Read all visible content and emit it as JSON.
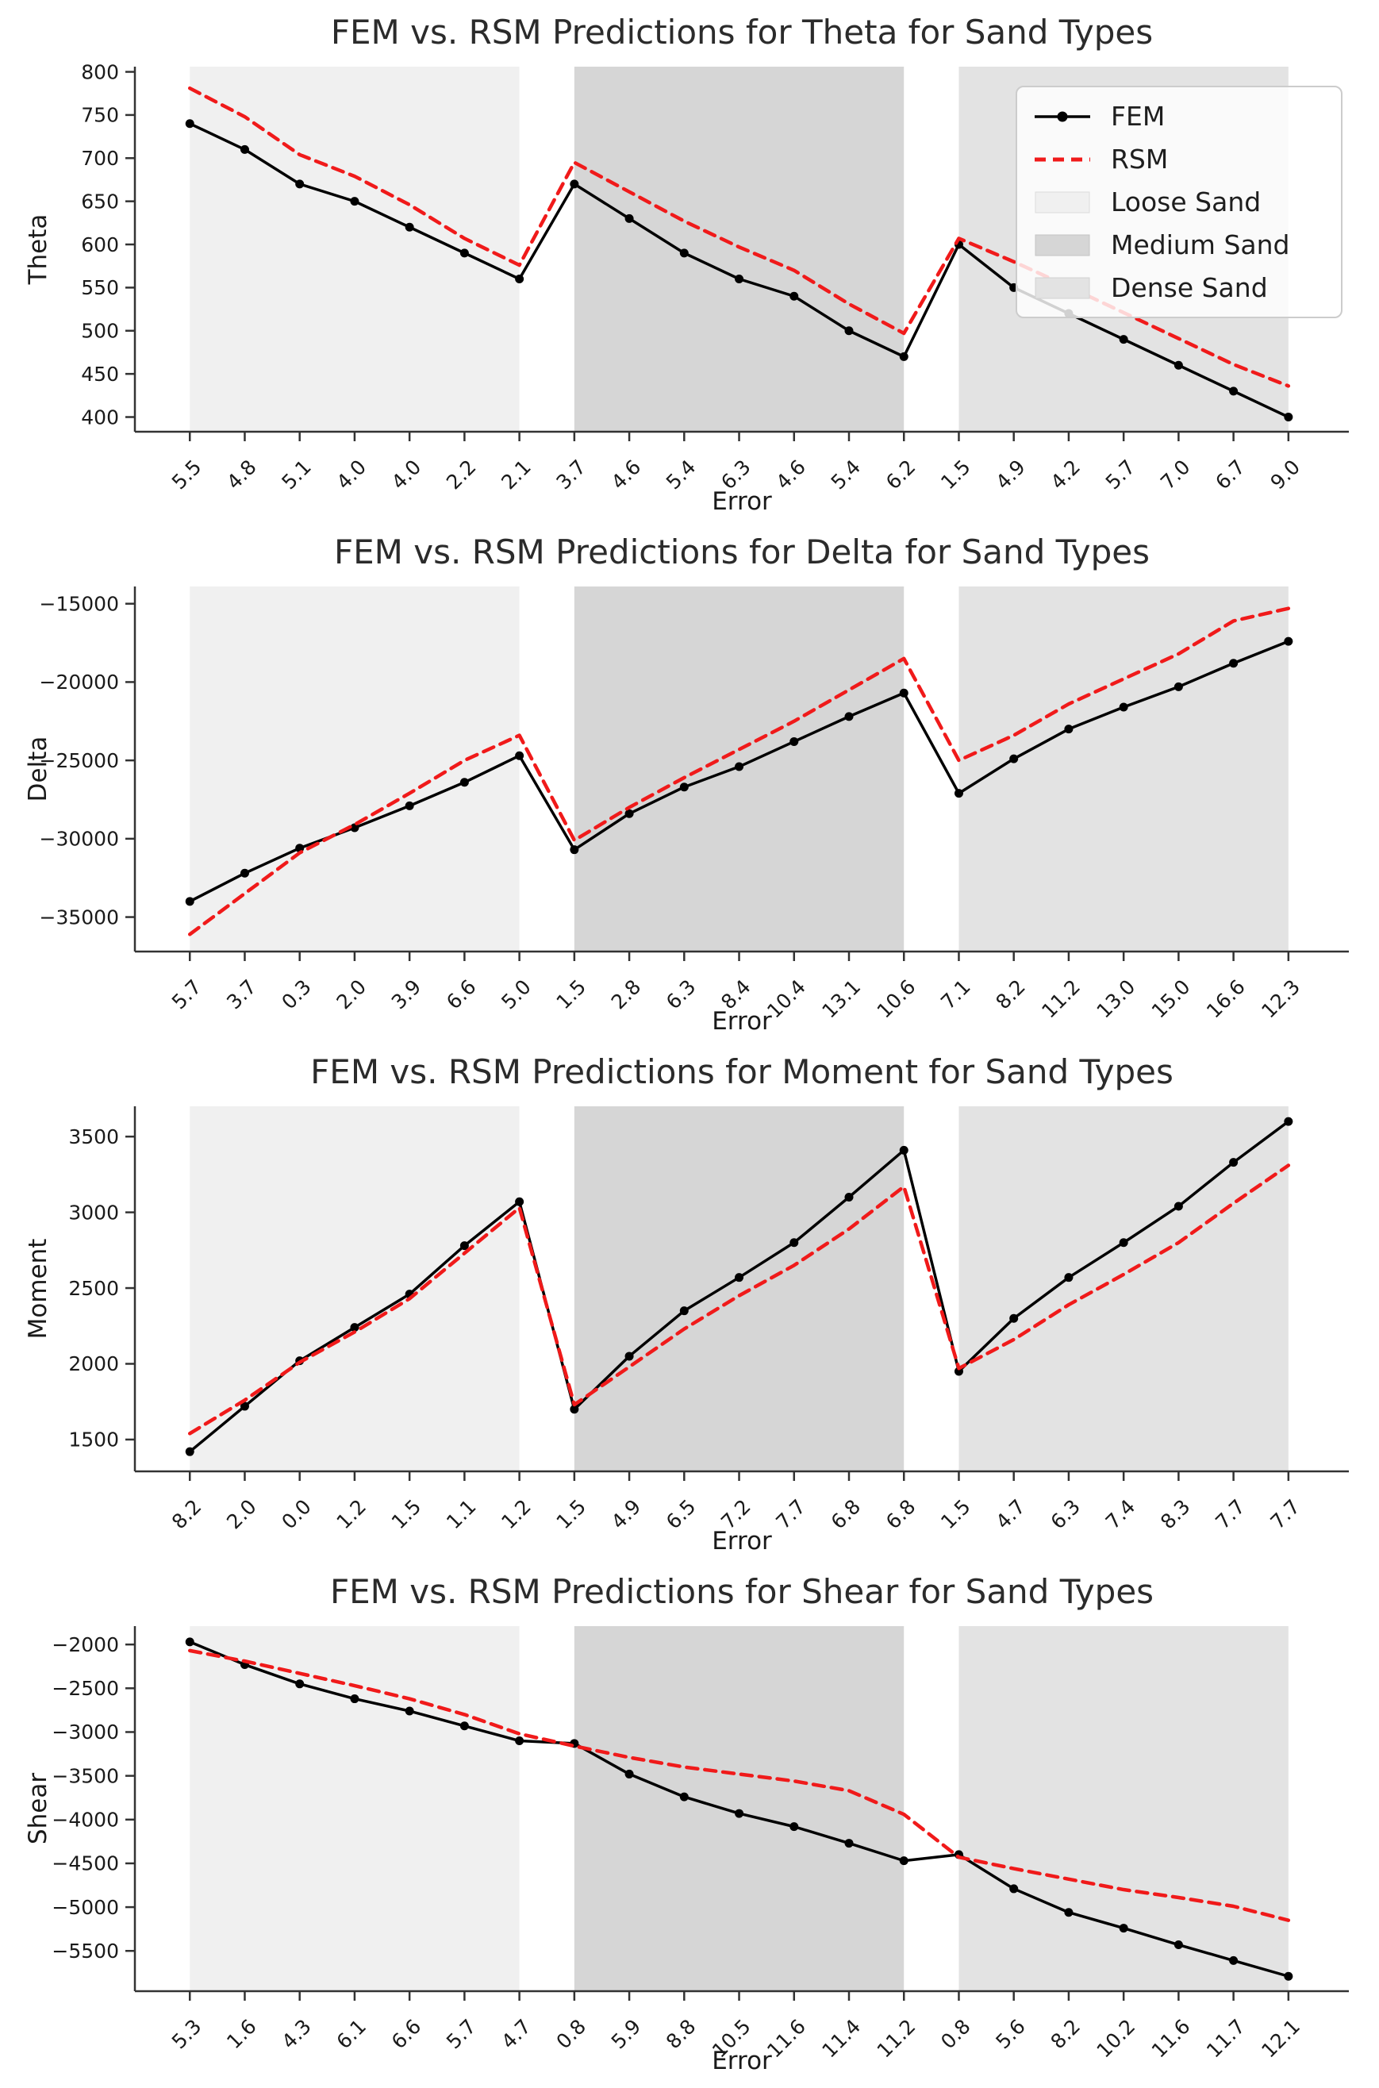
{
  "legend": {
    "items": [
      {
        "label": "FEM",
        "color": "#000000",
        "type": "line-with-marker"
      },
      {
        "label": "RSM",
        "color": "#f01a1a",
        "type": "dashed-line"
      },
      {
        "label": "Loose Sand",
        "color": "#f0f0f0",
        "type": "patch"
      },
      {
        "label": "Medium Sand",
        "color": "#d6d6d6",
        "type": "patch"
      },
      {
        "label": "Dense Sand",
        "color": "#e3e3e3",
        "type": "patch"
      }
    ]
  },
  "chart_data": [
    {
      "type": "line",
      "title": "FEM vs. RSM Predictions for Theta for Sand Types",
      "xlabel": "Error",
      "ylabel": "Theta",
      "grid": false,
      "legend_position": "upper right",
      "x_tick_labels": [
        "5.5",
        "4.8",
        "5.1",
        "4.0",
        "4.0",
        "2.2",
        "2.1",
        "3.7",
        "4.6",
        "5.4",
        "6.3",
        "4.6",
        "5.4",
        "6.2",
        "1.5",
        "4.9",
        "4.2",
        "5.7",
        "7.0",
        "6.7",
        "9.0"
      ],
      "yticks": [
        400,
        450,
        500,
        550,
        600,
        650,
        700,
        750,
        800
      ],
      "ylim": [
        383,
        806
      ],
      "bands": [
        {
          "label": "Loose Sand",
          "start_index": 0,
          "end_index": 6,
          "color": "#f0f0f0"
        },
        {
          "label": "Medium Sand",
          "start_index": 7,
          "end_index": 13,
          "color": "#d6d6d6"
        },
        {
          "label": "Dense Sand",
          "start_index": 14,
          "end_index": 20,
          "color": "#e3e3e3"
        }
      ],
      "series": [
        {
          "name": "FEM",
          "line_style": "solid",
          "marker": "circle",
          "color": "#000000",
          "values": [
            740,
            710,
            670,
            650,
            620,
            590,
            560,
            670,
            630,
            590,
            560,
            540,
            500,
            470,
            600,
            550,
            520,
            490,
            460,
            430,
            400
          ]
        },
        {
          "name": "RSM",
          "line_style": "dashed",
          "marker": "none",
          "color": "#f01a1a",
          "values": [
            781,
            748,
            704,
            679,
            646,
            607,
            576,
            695,
            661,
            627,
            597,
            570,
            531,
            497,
            607,
            580,
            551,
            521,
            491,
            461,
            436
          ]
        }
      ]
    },
    {
      "type": "line",
      "title": "FEM vs. RSM Predictions for Delta for Sand Types",
      "xlabel": "Error",
      "ylabel": "Delta",
      "grid": false,
      "legend_position": "none",
      "x_tick_labels": [
        "5.7",
        "3.7",
        "0.3",
        "2.0",
        "3.9",
        "6.6",
        "5.0",
        "1.5",
        "2.8",
        "6.3",
        "8.4",
        "10.4",
        "13.1",
        "10.6",
        "7.1",
        "8.2",
        "11.2",
        "13.0",
        "15.0",
        "16.6",
        "12.3"
      ],
      "yticks": [
        -35000,
        -30000,
        -25000,
        -20000,
        -15000
      ],
      "ylim": [
        -37200,
        -13900
      ],
      "bands": [
        {
          "label": "Loose Sand",
          "start_index": 0,
          "end_index": 6,
          "color": "#f0f0f0"
        },
        {
          "label": "Medium Sand",
          "start_index": 7,
          "end_index": 13,
          "color": "#d6d6d6"
        },
        {
          "label": "Dense Sand",
          "start_index": 14,
          "end_index": 20,
          "color": "#e3e3e3"
        }
      ],
      "series": [
        {
          "name": "FEM",
          "line_style": "solid",
          "marker": "circle",
          "color": "#000000",
          "values": [
            -34000,
            -32200,
            -30600,
            -29300,
            -27900,
            -26400,
            -24700,
            -30700,
            -28400,
            -26700,
            -25400,
            -23800,
            -22200,
            -20700,
            -27100,
            -24900,
            -23000,
            -21600,
            -20300,
            -18800,
            -17400
          ]
        },
        {
          "name": "RSM",
          "line_style": "dashed",
          "marker": "none",
          "color": "#f01a1a",
          "values": [
            -36100,
            -33500,
            -30900,
            -29100,
            -27100,
            -25000,
            -23400,
            -30100,
            -28000,
            -26100,
            -24300,
            -22500,
            -20500,
            -18500,
            -25000,
            -23400,
            -21400,
            -19800,
            -18200,
            -16100,
            -15300
          ]
        }
      ]
    },
    {
      "type": "line",
      "title": "FEM vs. RSM Predictions for Moment for Sand Types",
      "xlabel": "Error",
      "ylabel": "Moment",
      "grid": false,
      "legend_position": "none",
      "x_tick_labels": [
        "8.2",
        "2.0",
        "0.0",
        "1.2",
        "1.5",
        "1.1",
        "1.2",
        "1.5",
        "4.9",
        "6.5",
        "7.2",
        "7.7",
        "6.8",
        "6.8",
        "1.5",
        "4.7",
        "6.3",
        "7.4",
        "8.3",
        "7.7",
        "7.7"
      ],
      "yticks": [
        1500,
        2000,
        2500,
        3000,
        3500
      ],
      "ylim": [
        1290,
        3700
      ],
      "bands": [
        {
          "label": "Loose Sand",
          "start_index": 0,
          "end_index": 6,
          "color": "#f0f0f0"
        },
        {
          "label": "Medium Sand",
          "start_index": 7,
          "end_index": 13,
          "color": "#d6d6d6"
        },
        {
          "label": "Dense Sand",
          "start_index": 14,
          "end_index": 20,
          "color": "#e3e3e3"
        }
      ],
      "series": [
        {
          "name": "FEM",
          "line_style": "solid",
          "marker": "circle",
          "color": "#000000",
          "values": [
            1420,
            1720,
            2020,
            2240,
            2460,
            2780,
            3070,
            1700,
            2050,
            2350,
            2570,
            2800,
            3100,
            3410,
            1950,
            2300,
            2570,
            2800,
            3040,
            3330,
            3600
          ]
        },
        {
          "name": "RSM",
          "line_style": "dashed",
          "marker": "none",
          "color": "#f01a1a",
          "values": [
            1540,
            1760,
            2010,
            2210,
            2430,
            2730,
            3030,
            1730,
            1980,
            2230,
            2450,
            2650,
            2890,
            3170,
            1970,
            2160,
            2390,
            2590,
            2800,
            3060,
            3310
          ]
        }
      ]
    },
    {
      "type": "line",
      "title": "FEM vs. RSM Predictions for Shear for Sand Types",
      "xlabel": "Error",
      "ylabel": "Shear",
      "grid": false,
      "legend_position": "none",
      "x_tick_labels": [
        "5.3",
        "1.6",
        "4.3",
        "6.1",
        "6.6",
        "5.7",
        "4.7",
        "0.8",
        "5.9",
        "8.8",
        "10.5",
        "11.6",
        "11.4",
        "11.2",
        "0.8",
        "5.6",
        "8.2",
        "10.2",
        "11.6",
        "11.7",
        "12.1"
      ],
      "yticks": [
        -5500,
        -5000,
        -4500,
        -4000,
        -3500,
        -3000,
        -2500,
        -2000
      ],
      "ylim": [
        -5960,
        -1790
      ],
      "bands": [
        {
          "label": "Loose Sand",
          "start_index": 0,
          "end_index": 6,
          "color": "#f0f0f0"
        },
        {
          "label": "Medium Sand",
          "start_index": 7,
          "end_index": 13,
          "color": "#d6d6d6"
        },
        {
          "label": "Dense Sand",
          "start_index": 14,
          "end_index": 20,
          "color": "#e3e3e3"
        }
      ],
      "series": [
        {
          "name": "FEM",
          "line_style": "solid",
          "marker": "circle",
          "color": "#000000",
          "values": [
            -1970,
            -2230,
            -2450,
            -2620,
            -2760,
            -2930,
            -3100,
            -3130,
            -3480,
            -3740,
            -3930,
            -4080,
            -4270,
            -4470,
            -4400,
            -4790,
            -5060,
            -5240,
            -5430,
            -5610,
            -5790
          ]
        },
        {
          "name": "RSM",
          "line_style": "dashed",
          "marker": "none",
          "color": "#f01a1a",
          "values": [
            -2070,
            -2190,
            -2330,
            -2470,
            -2620,
            -2800,
            -3020,
            -3160,
            -3290,
            -3400,
            -3480,
            -3560,
            -3670,
            -3940,
            -4430,
            -4560,
            -4680,
            -4800,
            -4890,
            -4990,
            -5150
          ]
        }
      ]
    }
  ]
}
